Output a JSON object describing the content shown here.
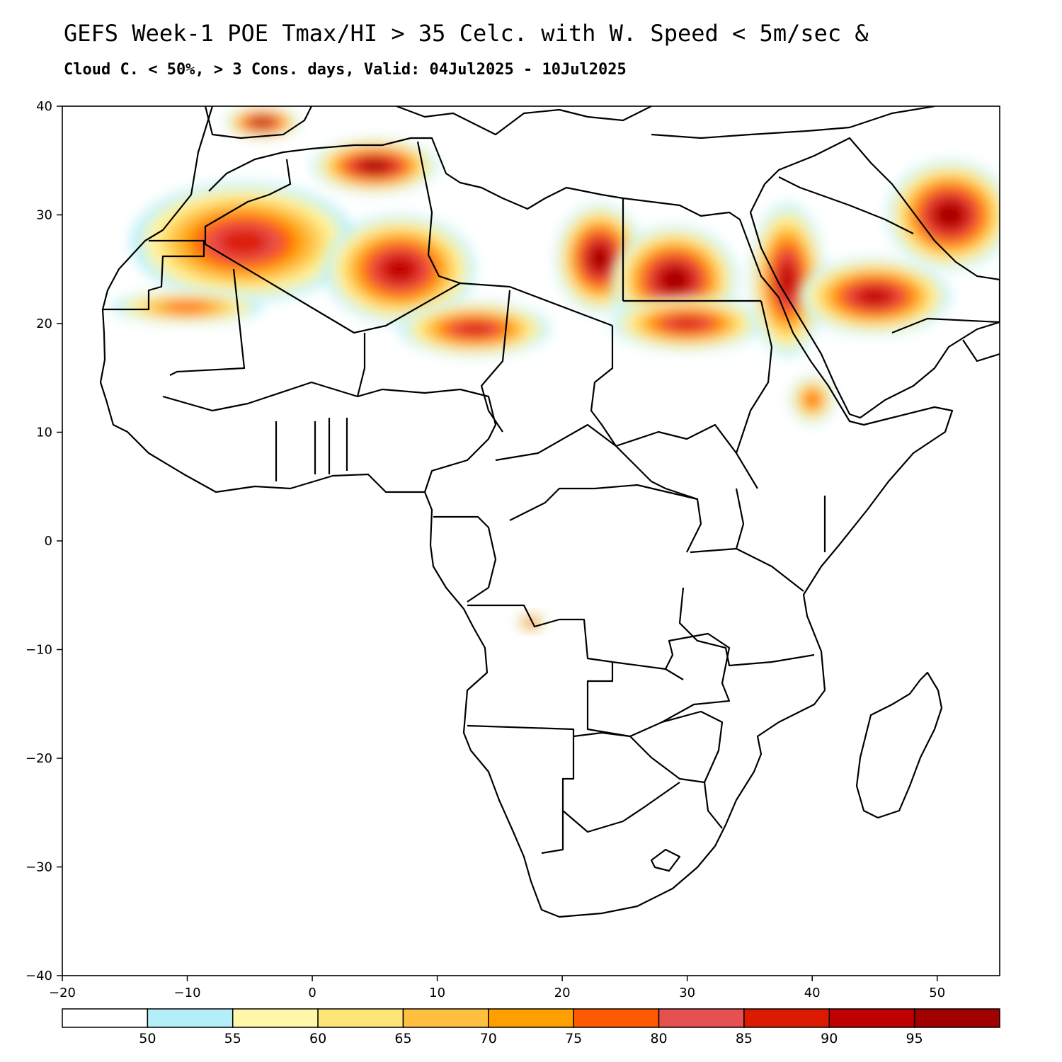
{
  "title": {
    "line1": "GEFS Week-1 POE Tmax/HI > 35 Celc. with W. Speed < 5m/sec &",
    "line2": "Cloud C. < 50%, > 3 Cons. days, Valid: 04Jul2025 - 10Jul2025"
  },
  "axes": {
    "x_ticks": [
      -20,
      -10,
      0,
      10,
      20,
      30,
      40,
      50
    ],
    "y_ticks": [
      40,
      30,
      20,
      10,
      0,
      -10,
      -20,
      -30,
      -40
    ],
    "x_range": [
      -20,
      55
    ],
    "y_range": [
      -40,
      40
    ]
  },
  "colorbar": {
    "labels": [
      "50",
      "55",
      "60",
      "65",
      "70",
      "75",
      "80",
      "85",
      "90",
      "95"
    ],
    "colors": [
      "#ffffff",
      "#b4eef8",
      "#fff8a8",
      "#ffe478",
      "#ffc040",
      "#ffa000",
      "#ff5a00",
      "#e65050",
      "#dc1a00",
      "#c00000",
      "#a00000"
    ]
  },
  "map_regions": [
    {
      "name": "sahara-west",
      "level": 8,
      "lon": -5.5,
      "lat": 27.5,
      "rx": 9,
      "ry": 5.5
    },
    {
      "name": "sahara-central",
      "level": 9,
      "lon": 7,
      "lat": 25,
      "rx": 6,
      "ry": 5
    },
    {
      "name": "algeria-north",
      "level": 10,
      "lon": 5,
      "lat": 34.5,
      "rx": 5,
      "ry": 2.5
    },
    {
      "name": "libya-east",
      "level": 10,
      "lon": 23,
      "lat": 26,
      "rx": 3.5,
      "ry": 5
    },
    {
      "name": "egypt",
      "level": 10,
      "lon": 29,
      "lat": 24,
      "rx": 5,
      "ry": 5
    },
    {
      "name": "sudan-north",
      "level": 8,
      "lon": 30,
      "lat": 20,
      "rx": 6,
      "ry": 2.5
    },
    {
      "name": "niger-chad",
      "level": 8,
      "lon": 13,
      "lat": 19.5,
      "rx": 6,
      "ry": 2.5
    },
    {
      "name": "red-sea-coast",
      "level": 9,
      "lon": 38,
      "lat": 24,
      "rx": 3,
      "ry": 7
    },
    {
      "name": "arabia",
      "level": 9,
      "lon": 45,
      "lat": 22.5,
      "rx": 6,
      "ry": 3.5
    },
    {
      "name": "iran-iraq",
      "level": 10,
      "lon": 51,
      "lat": 30,
      "rx": 5,
      "ry": 5
    },
    {
      "name": "mauritania",
      "level": 6,
      "lon": -10,
      "lat": 21.5,
      "rx": 6,
      "ry": 1.5
    },
    {
      "name": "spain",
      "level": 10,
      "lon": -4,
      "lat": 38.5,
      "rx": 3,
      "ry": 1.5
    },
    {
      "name": "eritrea",
      "level": 6,
      "lon": 40,
      "lat": 13,
      "rx": 1.8,
      "ry": 2.2
    },
    {
      "name": "angola-drc",
      "level": 7,
      "lon": 17.5,
      "lat": -7.5,
      "rx": 1.2,
      "ry": 0.8
    }
  ]
}
